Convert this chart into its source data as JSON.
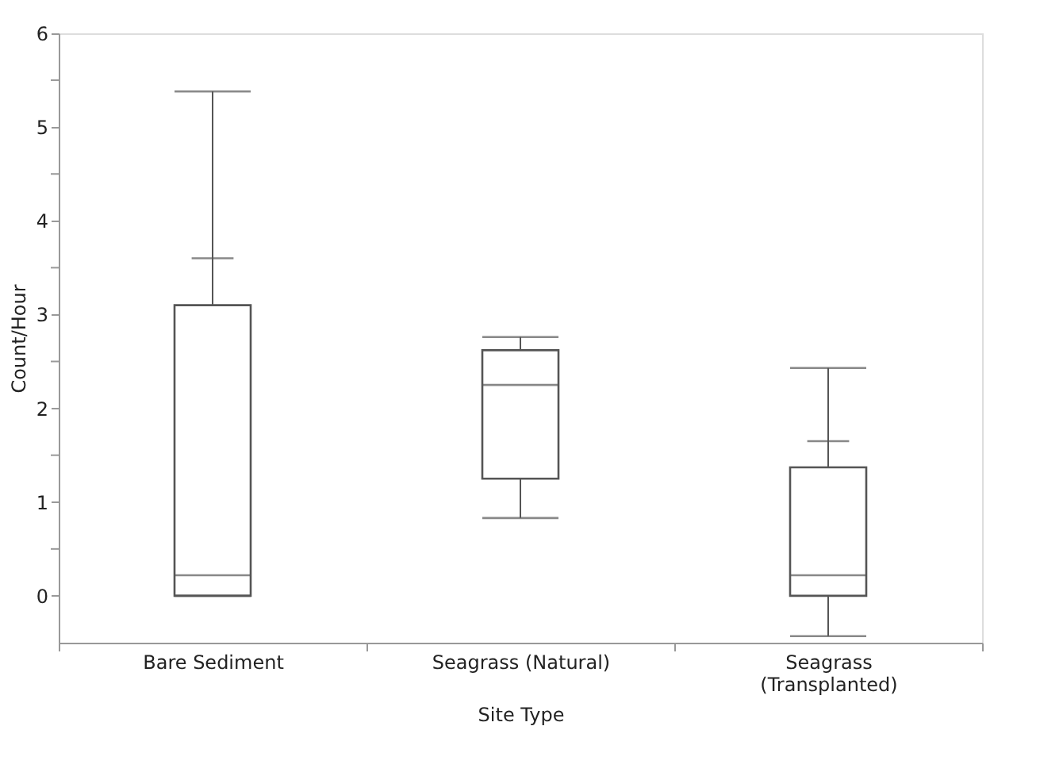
{
  "chart_data": {
    "type": "box",
    "xlabel": "Site Type",
    "ylabel": "Count/Hour",
    "categories": [
      "Bare Sediment",
      "Seagrass (Natural)",
      "Seagrass (Transplanted)"
    ],
    "boxes": [
      {
        "low": 0,
        "q1": 0,
        "median": 0.22,
        "q3": 3.1,
        "high": 5.38,
        "mean": 3.6
      },
      {
        "low": 0.83,
        "q1": 1.25,
        "median": 2.25,
        "q3": 2.62,
        "high": 2.76
      },
      {
        "low": -0.43,
        "q1": 0,
        "median": 0.22,
        "q3": 1.37,
        "high": 2.43,
        "mean": 1.65
      }
    ],
    "ylim": [
      -0.5,
      6
    ],
    "yticks": [
      0,
      {
        "value": 0.5,
        "label": null
      },
      1,
      {
        "value": 1.5,
        "label": null
      },
      2,
      {
        "value": 2.5,
        "label": null
      },
      3,
      {
        "value": 3.5,
        "label": null
      },
      4,
      {
        "value": 4.5,
        "label": null
      },
      5,
      {
        "value": 5.5,
        "label": null
      },
      6
    ],
    "grid": false
  }
}
